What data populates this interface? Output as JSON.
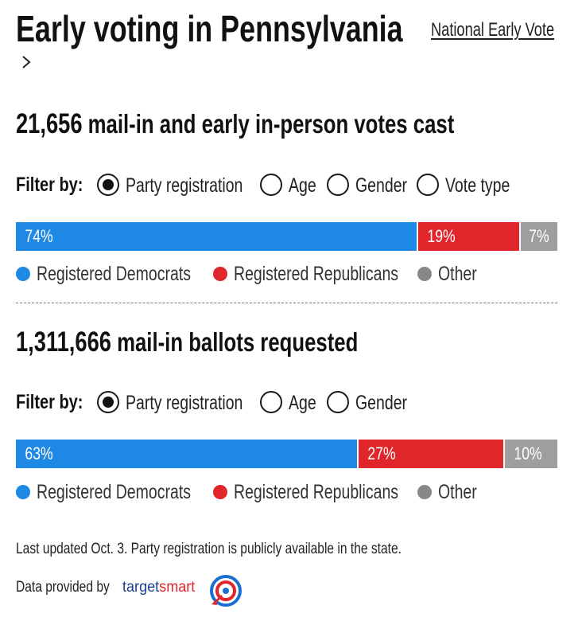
{
  "header": {
    "title": "Early voting in Pennsylvania",
    "link_label": "National Early Vote",
    "chevron_icon": "chevron-right-icon"
  },
  "early_votes": {
    "count": "21,656",
    "label": "mail-in and early in-person votes cast",
    "filter": {
      "label": "Filter by:",
      "options": [
        {
          "label": "Party registration",
          "selected": true
        },
        {
          "label": "Age",
          "selected": false
        },
        {
          "label": "Gender",
          "selected": false
        },
        {
          "label": "Vote type",
          "selected": false
        }
      ]
    },
    "bar": [
      {
        "label": "74%",
        "value": 74,
        "color": "#1e88e5"
      },
      {
        "label": "19%",
        "value": 19,
        "color": "#e0262b"
      },
      {
        "label": "7%",
        "value": 7,
        "color": "#9e9e9e"
      }
    ],
    "legend": [
      {
        "label": "Registered Democrats",
        "color": "#1e88e5"
      },
      {
        "label": "Registered Republicans",
        "color": "#e0262b"
      },
      {
        "label": "Other",
        "color": "#888888"
      }
    ]
  },
  "ballots": {
    "count": "1,311,666",
    "label": "mail-in ballots requested",
    "filter": {
      "label": "Filter by:",
      "options": [
        {
          "label": "Party registration",
          "selected": true
        },
        {
          "label": "Age",
          "selected": false
        },
        {
          "label": "Gender",
          "selected": false
        }
      ]
    },
    "bar": [
      {
        "label": "63%",
        "value": 63,
        "color": "#1e88e5"
      },
      {
        "label": "27%",
        "value": 27,
        "color": "#e0262b"
      },
      {
        "label": "10%",
        "value": 10,
        "color": "#9e9e9e"
      }
    ],
    "legend": [
      {
        "label": "Registered Democrats",
        "color": "#1e88e5"
      },
      {
        "label": "Registered Republicans",
        "color": "#e0262b"
      },
      {
        "label": "Other",
        "color": "#888888"
      }
    ]
  },
  "footer": {
    "note": "Last updated Oct. 3. Party registration is publicly available in the state.",
    "provided_by": "Data provided by",
    "brand_part1": "target",
    "brand_part2": "smart",
    "logo_icon": "targetsmart-logo-icon"
  }
}
